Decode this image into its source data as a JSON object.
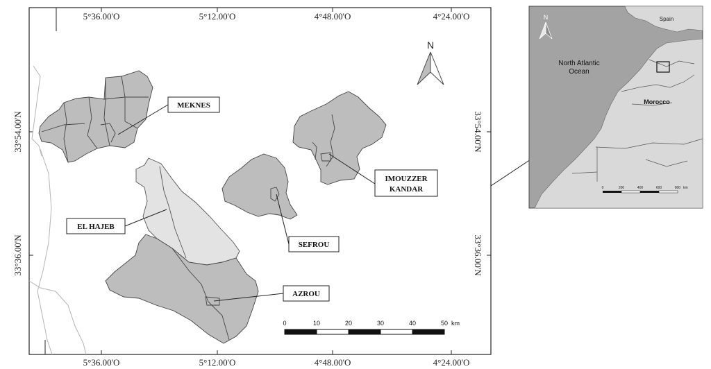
{
  "main_map": {
    "top_coords": [
      "5°36.00'O",
      "5°12.00'O",
      "4°48.00'O",
      "4°24.00'O"
    ],
    "bottom_coords": [
      "5°36.00'O",
      "5°12.00'O",
      "4°48.00'O",
      "4°24.00'O"
    ],
    "left_coords": [
      "33°54.00'N",
      "33°36.00'N"
    ],
    "right_coords": [
      "33°54.00'N",
      "33°36.00'N"
    ],
    "north_label": "N",
    "places": {
      "meknes": "MEKNES",
      "imouzzer_line1": "IMOUZZER",
      "imouzzer_line2": "KANDAR",
      "el_hajeb": "EL HAJEB",
      "sefrou": "SEFROU",
      "azrou": "AZROU"
    },
    "scale": {
      "ticks": [
        "0",
        "10",
        "20",
        "30",
        "40",
        "50"
      ],
      "unit": "km"
    }
  },
  "inset_map": {
    "north_label": "N",
    "spain": "Spain",
    "ocean_line1": "North Atlantic",
    "ocean_line2": "Ocean",
    "morocco": "Morocco",
    "scale": {
      "ticks": [
        "0",
        "200",
        "400",
        "600",
        "800"
      ],
      "unit": "km"
    }
  },
  "colors": {
    "province_fill": "#bdbdbd",
    "light_province_fill": "#e3e3e3",
    "inset_sea": "#a3a3a3",
    "inset_land": "#d9d9d9"
  }
}
